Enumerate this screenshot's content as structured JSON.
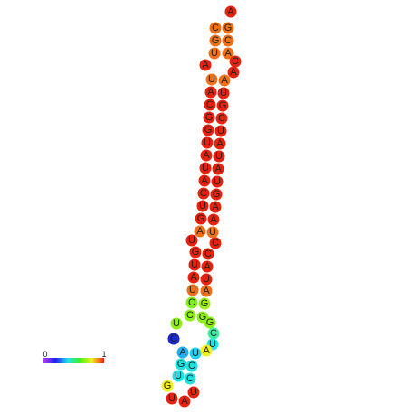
{
  "legend": {
    "min": "0",
    "max": "1"
  },
  "nodes": [
    {
      "label": "A",
      "color": "#e8200e"
    },
    {
      "label": "C",
      "color": "#f07018"
    },
    {
      "label": "G",
      "color": "#f07018"
    },
    {
      "label": "G",
      "color": "#f07018"
    },
    {
      "label": "C",
      "color": "#f07018"
    },
    {
      "label": "U",
      "color": "#f07018"
    },
    {
      "label": "A",
      "color": "#f07018"
    },
    {
      "label": "A",
      "color": "#e8200e"
    },
    {
      "label": "C",
      "color": "#e8200e"
    },
    {
      "label": "A",
      "color": "#e8200e"
    },
    {
      "label": "U",
      "color": "#f07018"
    },
    {
      "label": "A",
      "color": "#f07018"
    },
    {
      "label": "A",
      "color": "#e8200e"
    },
    {
      "label": "U",
      "color": "#e8200e"
    },
    {
      "label": "C",
      "color": "#e8200e"
    },
    {
      "label": "G",
      "color": "#e8200e"
    },
    {
      "label": "G",
      "color": "#e8200e"
    },
    {
      "label": "C",
      "color": "#e8200e"
    },
    {
      "label": "G",
      "color": "#e8200e"
    },
    {
      "label": "U",
      "color": "#e8200e"
    },
    {
      "label": "U",
      "color": "#e8200e"
    },
    {
      "label": "A",
      "color": "#e8200e"
    },
    {
      "label": "A",
      "color": "#e8200e"
    },
    {
      "label": "U",
      "color": "#e8200e"
    },
    {
      "label": "U",
      "color": "#e8200e"
    },
    {
      "label": "A",
      "color": "#e8200e"
    },
    {
      "label": "A",
      "color": "#e8200e"
    },
    {
      "label": "U",
      "color": "#e8200e"
    },
    {
      "label": "C",
      "color": "#e8200e"
    },
    {
      "label": "G",
      "color": "#e8200e"
    },
    {
      "label": "U",
      "color": "#e8200e"
    },
    {
      "label": "A",
      "color": "#e8200e"
    },
    {
      "label": "G",
      "color": "#e8200e"
    },
    {
      "label": "A",
      "color": "#e8200e"
    },
    {
      "label": "A",
      "color": "#f07018"
    },
    {
      "label": "U",
      "color": "#f07018"
    },
    {
      "label": "U",
      "color": "#e8200e"
    },
    {
      "label": "C",
      "color": "#e8200e"
    },
    {
      "label": "G",
      "color": "#e8200e"
    },
    {
      "label": "C",
      "color": "#e8200e"
    },
    {
      "label": "U",
      "color": "#e8200e"
    },
    {
      "label": "A",
      "color": "#e8200e"
    },
    {
      "label": "A",
      "color": "#e8200e"
    },
    {
      "label": "U",
      "color": "#e8200e"
    },
    {
      "label": "U",
      "color": "#f07018"
    },
    {
      "label": "A",
      "color": "#f07018"
    },
    {
      "label": "C",
      "color": "#7ef01a"
    },
    {
      "label": "G",
      "color": "#9cf01a"
    },
    {
      "label": "C",
      "color": "#8ef01a"
    },
    {
      "label": "G",
      "color": "#8ef01a"
    },
    {
      "label": "U",
      "color": "#8ef01a"
    },
    {
      "label": "G",
      "color": "#8ef01a"
    },
    {
      "label": "C",
      "color": "#3af0a0"
    },
    {
      "label": "U",
      "color": "#20e8e8"
    },
    {
      "label": "C",
      "color": "#1a2ac8"
    },
    {
      "label": "A",
      "color": "#20b0f0"
    },
    {
      "label": "U",
      "color": "#20d0f0"
    },
    {
      "label": "A",
      "color": "#f0f020"
    },
    {
      "label": "G",
      "color": "#20e0e0"
    },
    {
      "label": "C",
      "color": "#20e0e0"
    },
    {
      "label": "U",
      "color": "#20e0e0"
    },
    {
      "label": "C",
      "color": "#20e0e0"
    },
    {
      "label": "G",
      "color": "#f0f020"
    },
    {
      "label": "U",
      "color": "#e8200e"
    },
    {
      "label": "U",
      "color": "#e8200e"
    },
    {
      "label": "A",
      "color": "#e8200e"
    }
  ]
}
